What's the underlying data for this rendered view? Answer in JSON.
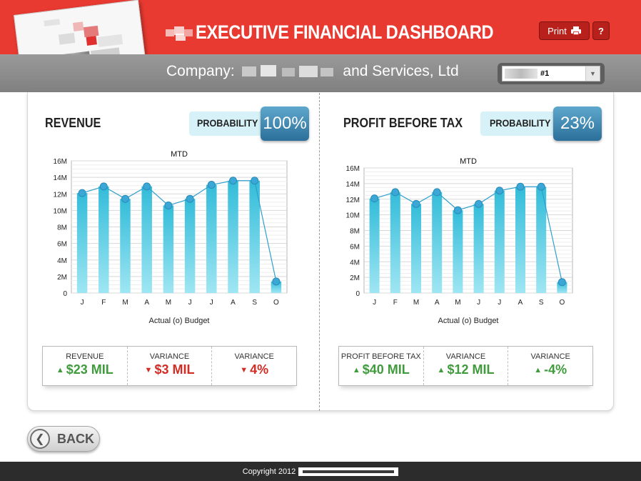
{
  "header": {
    "title": "EXECUTIVE FINANCIAL DASHBOARD",
    "print_label": "Print",
    "help_label": "?",
    "colors": {
      "brand_red": "#e83a31",
      "button_red": "#b8201b"
    }
  },
  "company_bar": {
    "prefix": "Company:",
    "suffix": "and Services, Ltd",
    "selector_value": "#1"
  },
  "revenue": {
    "title": "REVENUE",
    "probability_label": "PROBABILITY",
    "probability_value": "100%",
    "metrics": [
      {
        "label": "REVENUE",
        "value": "$23 MIL",
        "trend": "up"
      },
      {
        "label": "VARIANCE",
        "value": "$3 MIL",
        "trend": "down"
      },
      {
        "label": "VARIANCE",
        "value": "4%",
        "trend": "down"
      }
    ]
  },
  "profit": {
    "title": "PROFIT BEFORE TAX",
    "probability_label": "PROBABILITY",
    "probability_value": "23%",
    "metrics": [
      {
        "label": "PROFIT BEFORE TAX",
        "value": "$40 MIL",
        "trend": "up"
      },
      {
        "label": "VARIANCE",
        "value": "$12 MIL",
        "trend": "up"
      },
      {
        "label": "VARIANCE",
        "value": "-4%",
        "trend": "up"
      }
    ]
  },
  "chart_data": [
    {
      "type": "bar",
      "title": "MTD",
      "xlabel": "Actual (o) Budget",
      "ylabel": "",
      "categories": [
        "J",
        "F",
        "M",
        "A",
        "M",
        "J",
        "J",
        "A",
        "S",
        "O"
      ],
      "y_ticks": [
        "0",
        "2M",
        "4M",
        "6M",
        "8M",
        "10M",
        "12M",
        "14M",
        "16M"
      ],
      "ylim": [
        0,
        16
      ],
      "grid": true,
      "series": [
        {
          "kind": "bar",
          "values": [
            12.1,
            12.9,
            11.4,
            12.9,
            10.6,
            11.4,
            13.1,
            13.6,
            13.6,
            1.4
          ]
        },
        {
          "kind": "line",
          "values": [
            12.1,
            12.9,
            11.4,
            12.9,
            10.6,
            11.4,
            13.1,
            13.6,
            13.6,
            1.4
          ]
        }
      ],
      "colors": {
        "bar": "#4cc6df",
        "line": "#2e9fce"
      }
    },
    {
      "type": "bar",
      "title": "MTD",
      "xlabel": "Actual (o) Budget",
      "ylabel": "",
      "categories": [
        "J",
        "F",
        "M",
        "A",
        "M",
        "J",
        "J",
        "A",
        "S",
        "O"
      ],
      "y_ticks": [
        "0",
        "2M",
        "4M",
        "6M",
        "8M",
        "10M",
        "12M",
        "14M",
        "16M"
      ],
      "ylim": [
        0,
        16
      ],
      "grid": true,
      "series": [
        {
          "kind": "bar",
          "values": [
            12.1,
            12.9,
            11.4,
            12.9,
            10.6,
            11.4,
            13.1,
            13.6,
            13.6,
            1.4
          ]
        },
        {
          "kind": "line",
          "values": [
            12.1,
            12.9,
            11.4,
            12.9,
            10.6,
            11.4,
            13.1,
            13.6,
            13.6,
            1.4
          ]
        }
      ],
      "colors": {
        "bar": "#4cc6df",
        "line": "#2e9fce"
      }
    }
  ],
  "navigation": {
    "back_label": "BACK"
  },
  "footer": {
    "copyright": "Copyright 2012"
  }
}
